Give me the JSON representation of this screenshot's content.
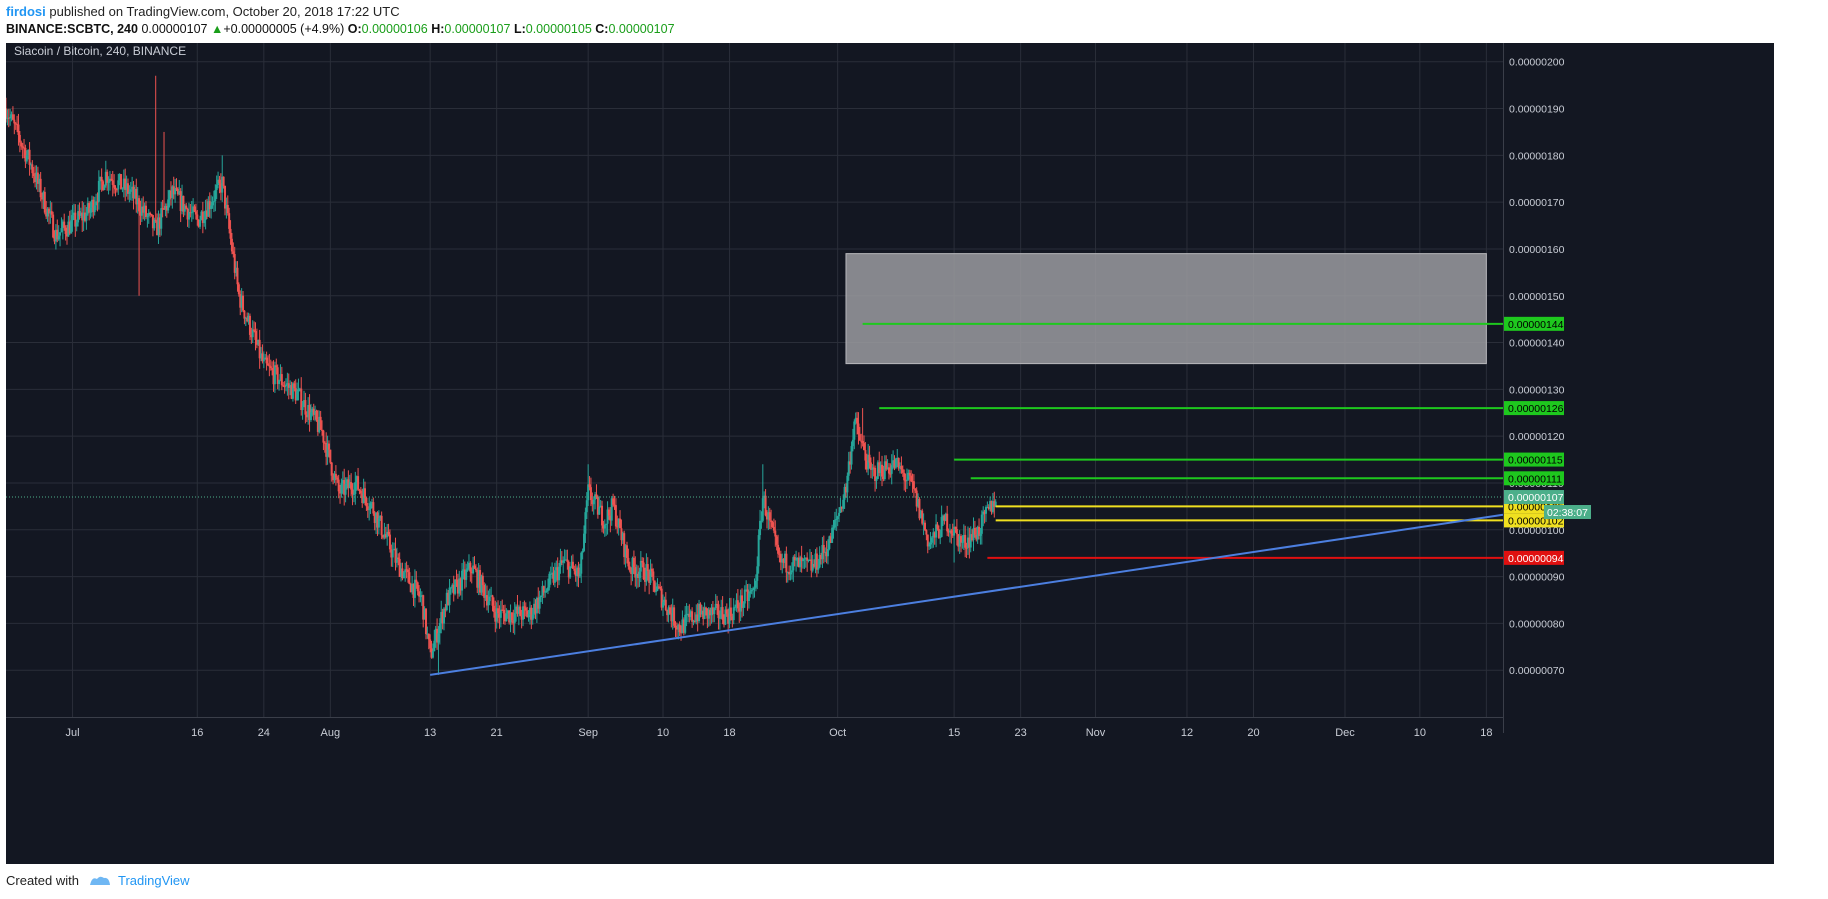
{
  "header": {
    "author": "firdosi",
    "published": "published on TradingView.com, October 20, 2018 17:22 UTC",
    "symbol": "BINANCE:SCBTC, 240",
    "last": "0.00000107",
    "change": "+0.00000005 (+4.9%)",
    "open_label": "O:",
    "open": "0.00000106",
    "high_label": "H:",
    "high": "0.00000107",
    "low_label": "L:",
    "low": "0.00000105",
    "close_label": "C:",
    "close": "0.00000107"
  },
  "footer": {
    "created_with": "Created with",
    "brand": "TradingView"
  },
  "colors": {
    "background": "#131722",
    "grid": "#2a2e39",
    "up": "#26a69a",
    "down": "#ef5350",
    "trendline": "#4c7fe0",
    "zone": "#9b9ba0",
    "green_level": "#1ec81e",
    "yellow_level": "#f0e020",
    "red_level": "#e01010",
    "last_price": "#4caf8a"
  },
  "chart_data": {
    "type": "candlestick",
    "title": "Siacoin / Bitcoin, 240, BINANCE",
    "x_ticks": [
      "Jul",
      "16",
      "24",
      "Aug",
      "13",
      "21",
      "Sep",
      "10",
      "18",
      "Oct",
      "15",
      "23",
      "Nov",
      "12",
      "20",
      "Dec",
      "10",
      "18"
    ],
    "x_range": [
      "2018-06-23",
      "2018-12-20"
    ],
    "ylim": [
      6e-07,
      2.04e-06
    ],
    "y_ticks": [
      "0.00000070",
      "0.00000080",
      "0.00000090",
      "0.00000100",
      "0.00000110",
      "0.00000120",
      "0.00000130",
      "0.00000140",
      "0.00000150",
      "0.00000160",
      "0.00000170",
      "0.00000180",
      "0.00000190",
      "0.00000200"
    ],
    "grid": true,
    "price_path": [
      [
        "2018-06-23",
        1.9e-06
      ],
      [
        "2018-06-26",
        1.78e-06
      ],
      [
        "2018-06-29",
        1.63e-06
      ],
      [
        "2018-07-03",
        1.68e-06
      ],
      [
        "2018-07-05",
        1.76e-06
      ],
      [
        "2018-07-08",
        1.72e-06
      ],
      [
        "2018-07-11",
        1.64e-06
      ],
      [
        "2018-07-13",
        1.72e-06
      ],
      [
        "2018-07-16",
        1.66e-06
      ],
      [
        "2018-07-19",
        1.74e-06
      ],
      [
        "2018-07-21",
        1.5e-06
      ],
      [
        "2018-07-24",
        1.35e-06
      ],
      [
        "2018-07-28",
        1.29e-06
      ],
      [
        "2018-07-31",
        1.21e-06
      ],
      [
        "2018-08-02",
        1.08e-06
      ],
      [
        "2018-08-04",
        1.1e-06
      ],
      [
        "2018-08-06",
        1.05e-06
      ],
      [
        "2018-08-09",
        9.3e-07
      ],
      [
        "2018-08-12",
        8.5e-07
      ],
      [
        "2018-08-13",
        7.3e-07
      ],
      [
        "2018-08-15",
        8.5e-07
      ],
      [
        "2018-08-18",
        9.2e-07
      ],
      [
        "2018-08-21",
        8.2e-07
      ],
      [
        "2018-08-25",
        8.2e-07
      ],
      [
        "2018-08-29",
        9.3e-07
      ],
      [
        "2018-08-31",
        9e-07
      ],
      [
        "2018-09-01",
        1.08e-06
      ],
      [
        "2018-09-03",
        1.02e-06
      ],
      [
        "2018-09-04",
        1.05e-06
      ],
      [
        "2018-09-06",
        9.2e-07
      ],
      [
        "2018-09-08",
        9.1e-07
      ],
      [
        "2018-09-12",
        7.9e-07
      ],
      [
        "2018-09-14",
        8.2e-07
      ],
      [
        "2018-09-18",
        8.2e-07
      ],
      [
        "2018-09-21",
        8.7e-07
      ],
      [
        "2018-09-22",
        1.07e-06
      ],
      [
        "2018-09-24",
        9.3e-07
      ],
      [
        "2018-09-28",
        9.2e-07
      ],
      [
        "2018-09-30",
        9.7e-07
      ],
      [
        "2018-10-02",
        1.09e-06
      ],
      [
        "2018-10-03",
        1.23e-06
      ],
      [
        "2018-10-05",
        1.12e-06
      ],
      [
        "2018-10-08",
        1.14e-06
      ],
      [
        "2018-10-10",
        1.09e-06
      ],
      [
        "2018-10-12",
        9.7e-07
      ],
      [
        "2018-10-14",
        1.02e-06
      ],
      [
        "2018-10-16",
        9.7e-07
      ],
      [
        "2018-10-18",
        1e-06
      ],
      [
        "2018-10-20",
        1.07e-06
      ]
    ],
    "wicks": [
      [
        "2018-07-11",
        1.97e-06
      ],
      [
        "2018-07-12",
        1.85e-06
      ],
      [
        "2018-07-19",
        1.8e-06
      ],
      [
        "2018-07-09",
        1.5e-06
      ],
      [
        "2018-08-14",
        6.9e-07
      ],
      [
        "2018-10-04",
        1.26e-06
      ],
      [
        "2018-09-01",
        1.14e-06
      ],
      [
        "2018-09-22",
        1.14e-06
      ],
      [
        "2018-10-15",
        9.3e-07
      ]
    ],
    "last_price": {
      "value": 1.07e-06,
      "label": "0.00000107",
      "countdown": "02:38:07"
    },
    "levels": [
      {
        "value": 1.44e-06,
        "label": "0.00000144",
        "color": "green",
        "start": "2018-10-04"
      },
      {
        "value": 1.26e-06,
        "label": "0.00000126",
        "color": "green",
        "start": "2018-10-06"
      },
      {
        "value": 1.15e-06,
        "label": "0.00000115",
        "color": "green",
        "start": "2018-10-15"
      },
      {
        "value": 1.11e-06,
        "label": "0.00000111",
        "color": "green",
        "start": "2018-10-17"
      },
      {
        "value": 1.05e-06,
        "label": "0.00000105",
        "color": "yellow",
        "start": "2018-10-20"
      },
      {
        "value": 1.02e-06,
        "label": "0.00000102",
        "color": "yellow",
        "start": "2018-10-20"
      },
      {
        "value": 9.4e-07,
        "label": "0.00000094",
        "color": "red",
        "start": "2018-10-19"
      }
    ],
    "zone": {
      "x": [
        "2018-10-02",
        "2018-12-18"
      ],
      "y": [
        1.355e-06,
        1.59e-06
      ]
    },
    "trendline": {
      "x": [
        "2018-08-13",
        "2018-12-20"
      ],
      "y": [
        6.9e-07,
        1.032e-06
      ]
    }
  }
}
